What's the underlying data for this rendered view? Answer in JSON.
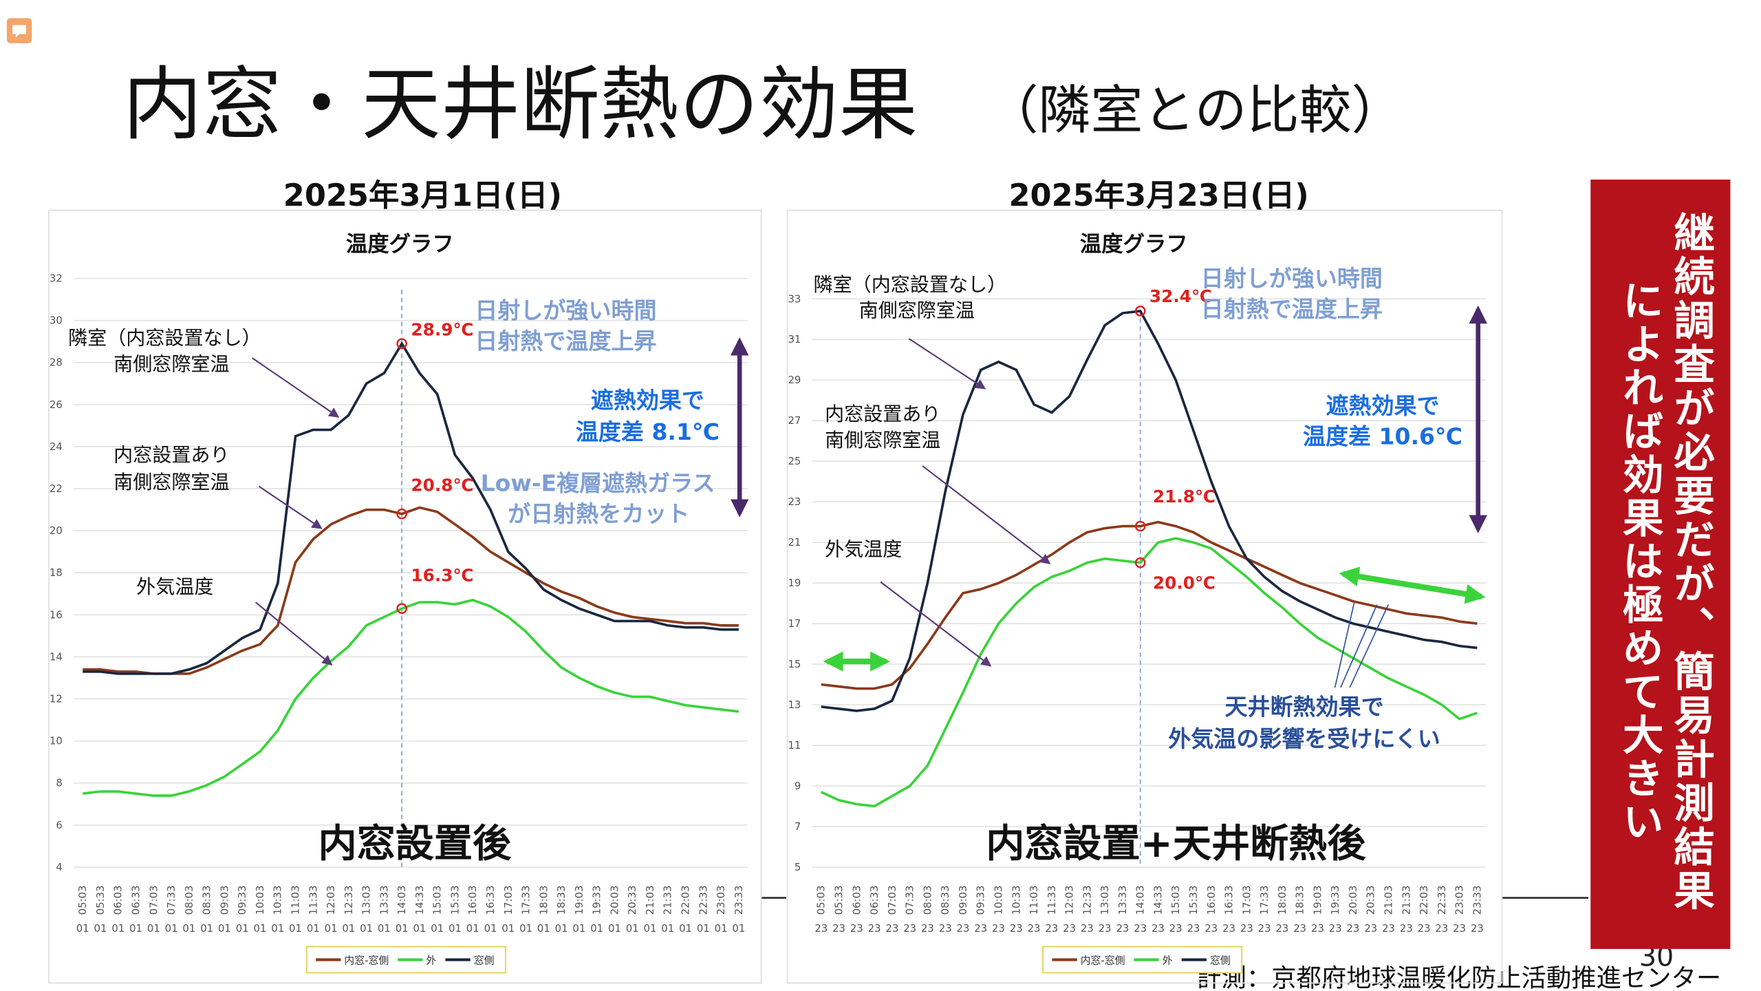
{
  "slide": {
    "title": "内窓・天井断熱の効果",
    "subtitle": "（隣室との比較）",
    "side_note": [
      "継続調査が必要だが、簡易計測結果",
      "によれば効果は極めて大きい"
    ],
    "credit": "計測：京都府地球温暖化防止活動推進センター",
    "page": "30"
  },
  "chart_data": [
    {
      "type": "line",
      "heading": "2025年3月1日(日)",
      "title": "温度グラフ",
      "categories": [
        "05:03",
        "05:33",
        "06:03",
        "06:33",
        "07:03",
        "07:33",
        "08:03",
        "08:33",
        "09:03",
        "09:33",
        "10:03",
        "10:33",
        "11:03",
        "11:33",
        "12:03",
        "12:33",
        "13:03",
        "13:33",
        "14:03",
        "14:33",
        "15:03",
        "15:33",
        "16:03",
        "16:33",
        "17:03",
        "17:33",
        "18:03",
        "18:33",
        "19:03",
        "19:33",
        "20:03",
        "20:33",
        "21:03",
        "21:33",
        "22:03",
        "22:33",
        "23:03",
        "23:33"
      ],
      "category_days": [
        "01",
        "01",
        "01",
        "01",
        "01",
        "01",
        "01",
        "01",
        "01",
        "01",
        "01",
        "01",
        "01",
        "01",
        "01",
        "01",
        "01",
        "01",
        "01",
        "01",
        "01",
        "01",
        "01",
        "01",
        "01",
        "01",
        "01",
        "01",
        "01",
        "01",
        "01",
        "01",
        "01",
        "01",
        "01",
        "01",
        "01",
        "01"
      ],
      "ylim": [
        4,
        32
      ],
      "yticks": [
        4,
        6,
        8,
        10,
        12,
        14,
        16,
        18,
        20,
        22,
        24,
        26,
        28,
        30,
        32
      ],
      "grid": true,
      "highlight_x": "14:03",
      "series": [
        {
          "name": "内窓-窓側",
          "color": "#8b3a1a",
          "values": [
            13.4,
            13.4,
            13.3,
            13.3,
            13.2,
            13.2,
            13.2,
            13.5,
            13.9,
            14.3,
            14.6,
            15.5,
            18.5,
            19.6,
            20.3,
            20.7,
            21.0,
            21.0,
            20.8,
            21.1,
            20.9,
            20.3,
            19.7,
            19.0,
            18.5,
            18.0,
            17.5,
            17.1,
            16.8,
            16.4,
            16.1,
            15.9,
            15.8,
            15.7,
            15.6,
            15.6,
            15.5,
            15.5
          ],
          "highlight": {
            "value": 20.8,
            "label": "20.8℃"
          }
        },
        {
          "name": "外",
          "color": "#3ad33a",
          "values": [
            7.5,
            7.6,
            7.6,
            7.5,
            7.4,
            7.4,
            7.6,
            7.9,
            8.3,
            8.9,
            9.5,
            10.5,
            12.0,
            13.0,
            13.8,
            14.5,
            15.5,
            15.9,
            16.3,
            16.6,
            16.6,
            16.5,
            16.7,
            16.4,
            15.9,
            15.2,
            14.3,
            13.5,
            13.0,
            12.6,
            12.3,
            12.1,
            12.1,
            11.9,
            11.7,
            11.6,
            11.5,
            11.4
          ],
          "highlight": {
            "value": 16.3,
            "label": "16.3℃"
          }
        },
        {
          "name": "窓側",
          "color": "#1a2740",
          "values": [
            13.3,
            13.3,
            13.2,
            13.2,
            13.2,
            13.2,
            13.4,
            13.7,
            14.3,
            14.9,
            15.3,
            17.5,
            24.5,
            24.8,
            24.8,
            25.5,
            27.0,
            27.5,
            28.9,
            27.5,
            26.5,
            23.6,
            22.5,
            21.0,
            19.0,
            18.2,
            17.2,
            16.7,
            16.3,
            16.0,
            15.7,
            15.7,
            15.7,
            15.5,
            15.4,
            15.4,
            15.3,
            15.3
          ],
          "highlight": {
            "value": 28.9,
            "label": "28.9℃"
          }
        }
      ],
      "labels": [
        [
          "隣室（内窓設置なし）",
          "南側窓際室温"
        ],
        [
          "内窓設置あり",
          "南側窓際室温"
        ],
        [
          "外気温度"
        ]
      ],
      "notes": [
        [
          "日射しが強い時間",
          "日射熱で温度上昇"
        ],
        [
          "遮熱効果で",
          "温度差 8.1℃"
        ],
        [
          "Low-E複層遮熱ガラス",
          "が日射熱をカット"
        ]
      ],
      "caption": "内窓設置後"
    },
    {
      "type": "line",
      "heading": "2025年3月23日(日)",
      "title": "温度グラフ",
      "categories": [
        "05:03",
        "05:33",
        "06:03",
        "06:33",
        "07:03",
        "07:33",
        "08:03",
        "08:33",
        "09:03",
        "09:33",
        "10:03",
        "10:33",
        "11:03",
        "11:33",
        "12:03",
        "12:33",
        "13:03",
        "13:33",
        "14:03",
        "14:33",
        "15:03",
        "15:33",
        "16:03",
        "16:33",
        "17:03",
        "17:33",
        "18:03",
        "18:33",
        "19:03",
        "19:33",
        "20:03",
        "20:33",
        "21:03",
        "21:33",
        "22:03",
        "22:33",
        "23:03",
        "23:33"
      ],
      "category_days": [
        "23",
        "23",
        "23",
        "23",
        "23",
        "23",
        "23",
        "23",
        "23",
        "23",
        "23",
        "23",
        "23",
        "23",
        "23",
        "23",
        "23",
        "23",
        "23",
        "23",
        "23",
        "23",
        "23",
        "23",
        "23",
        "23",
        "23",
        "23",
        "23",
        "23",
        "23",
        "23",
        "23",
        "23",
        "23",
        "23",
        "23",
        "23"
      ],
      "ylim": [
        5,
        33
      ],
      "yticks": [
        5,
        7,
        9,
        11,
        13,
        15,
        17,
        19,
        21,
        23,
        25,
        27,
        29,
        31,
        33
      ],
      "grid": true,
      "highlight_x": "14:03",
      "series": [
        {
          "name": "内窓-窓側",
          "color": "#8b3a1a",
          "values": [
            14.0,
            13.9,
            13.8,
            13.8,
            14.0,
            14.8,
            16.0,
            17.3,
            18.5,
            18.7,
            19.0,
            19.4,
            19.9,
            20.4,
            21.0,
            21.5,
            21.7,
            21.8,
            21.8,
            22.0,
            21.8,
            21.5,
            21.0,
            20.6,
            20.2,
            19.8,
            19.4,
            19.0,
            18.7,
            18.4,
            18.1,
            17.9,
            17.7,
            17.5,
            17.4,
            17.3,
            17.1,
            17.0
          ],
          "highlight": {
            "value": 21.8,
            "label": "21.8℃"
          }
        },
        {
          "name": "外",
          "color": "#3ad33a",
          "values": [
            8.7,
            8.3,
            8.1,
            8.0,
            8.5,
            9.0,
            10.0,
            11.8,
            13.6,
            15.5,
            17.0,
            18.0,
            18.8,
            19.3,
            19.6,
            20.0,
            20.2,
            20.1,
            20.0,
            21.0,
            21.2,
            21.0,
            20.7,
            20.0,
            19.3,
            18.5,
            17.8,
            17.0,
            16.3,
            15.8,
            15.3,
            14.8,
            14.3,
            13.9,
            13.5,
            13.0,
            12.3,
            12.6
          ],
          "highlight": {
            "value": 20.0,
            "label": "20.0℃"
          }
        },
        {
          "name": "窓側",
          "color": "#1a2740",
          "values": [
            12.9,
            12.8,
            12.7,
            12.8,
            13.2,
            15.3,
            19.0,
            23.5,
            27.3,
            29.5,
            29.9,
            29.5,
            27.8,
            27.4,
            28.2,
            30.0,
            31.7,
            32.3,
            32.4,
            30.8,
            29.0,
            26.5,
            24.0,
            21.8,
            20.2,
            19.3,
            18.6,
            18.1,
            17.7,
            17.3,
            17.0,
            16.8,
            16.6,
            16.4,
            16.2,
            16.1,
            15.9,
            15.8
          ],
          "highlight": {
            "value": 32.4,
            "label": "32.4℃"
          }
        }
      ],
      "labels": [
        [
          "隣室（内窓設置なし）",
          "南側窓際室温"
        ],
        [
          "内窓設置あり",
          "南側窓際室温"
        ],
        [
          "外気温度"
        ]
      ],
      "notes": [
        [
          "日射しが強い時間",
          "日射熱で温度上昇"
        ],
        [
          "遮熱効果で",
          "温度差 10.6℃"
        ],
        [
          "天井断熱効果で",
          "外気温の影響を受けにくい"
        ]
      ],
      "caption": "内窓設置+天井断熱後"
    }
  ]
}
